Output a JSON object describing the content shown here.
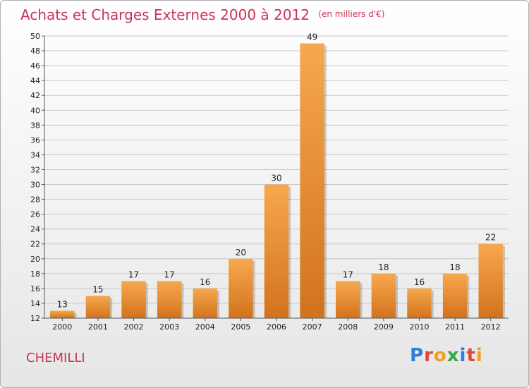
{
  "header": {
    "title": "Achats et Charges Externes 2000 à 2012",
    "subtitle": "(en milliers d'€)"
  },
  "footer": {
    "city": "CHEMILLI",
    "logo_text": "Proxiti"
  },
  "colors": {
    "bar_light": "#f7a84e",
    "bar_dark": "#d2731c",
    "title": "#cc3355",
    "grid": "#c8c8c8"
  },
  "chart_data": {
    "type": "bar",
    "categories": [
      "2000",
      "2001",
      "2002",
      "2003",
      "2004",
      "2005",
      "2006",
      "2007",
      "2008",
      "2009",
      "2010",
      "2011",
      "2012"
    ],
    "values": [
      13,
      15,
      17,
      17,
      16,
      20,
      30,
      49,
      17,
      18,
      16,
      18,
      22
    ],
    "title": "Achats et Charges Externes 2000 à 2012",
    "subtitle": "(en milliers d'€)",
    "xlabel": "",
    "ylabel": "",
    "ylim": [
      12,
      50
    ],
    "ytick_step": 2,
    "grid": true,
    "legend": "none"
  }
}
